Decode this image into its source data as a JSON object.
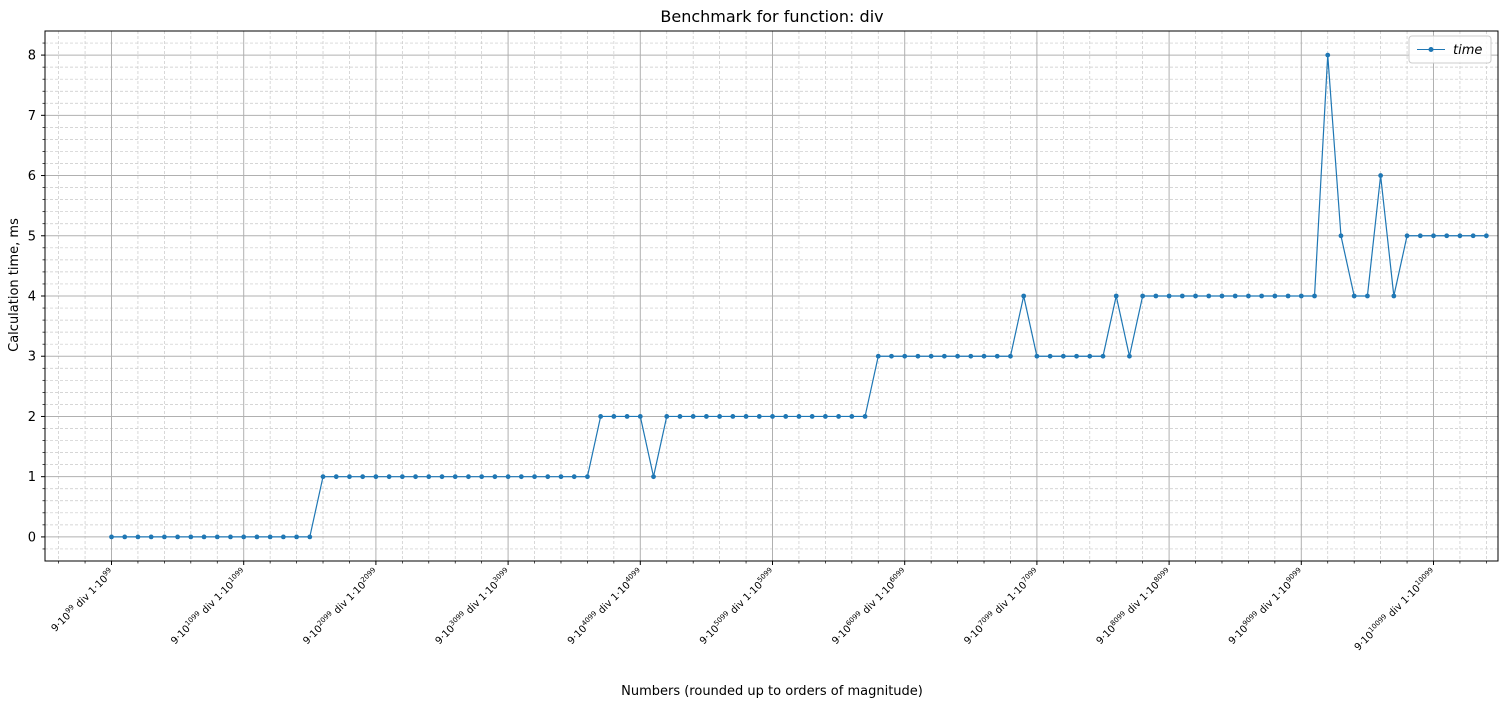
{
  "chart_data": {
    "type": "line",
    "title": "Benchmark for function: div",
    "xlabel": "Numbers (rounded up to orders of magnitude)",
    "ylabel": "Calculation time, ms",
    "ylim": [
      -0.4,
      8.4
    ],
    "yticks": [
      0,
      1,
      2,
      3,
      4,
      5,
      6,
      7,
      8
    ],
    "grid": "major solid, minor dashed",
    "legend_position": "top-right",
    "x_index_range": [
      0,
      100
    ],
    "xtick_labels": [
      {
        "index": 0,
        "pre": "9·10",
        "e1": "99",
        "mid": " div 1·10",
        "e2": "99"
      },
      {
        "index": 10,
        "pre": "9·10",
        "e1": "1099",
        "mid": " div 1·10",
        "e2": "1099"
      },
      {
        "index": 20,
        "pre": "9·10",
        "e1": "2099",
        "mid": " div 1·10",
        "e2": "2099"
      },
      {
        "index": 30,
        "pre": "9·10",
        "e1": "3099",
        "mid": " div 1·10",
        "e2": "3099"
      },
      {
        "index": 40,
        "pre": "9·10",
        "e1": "4099",
        "mid": " div 1·10",
        "e2": "4099"
      },
      {
        "index": 50,
        "pre": "9·10",
        "e1": "5099",
        "mid": " div 1·10",
        "e2": "5099"
      },
      {
        "index": 60,
        "pre": "9·10",
        "e1": "6099",
        "mid": " div 1·10",
        "e2": "6099"
      },
      {
        "index": 70,
        "pre": "9·10",
        "e1": "7099",
        "mid": " div 1·10",
        "e2": "7099"
      },
      {
        "index": 80,
        "pre": "9·10",
        "e1": "8099",
        "mid": " div 1·10",
        "e2": "8099"
      },
      {
        "index": 90,
        "pre": "9·10",
        "e1": "9099",
        "mid": " div 1·10",
        "e2": "9099"
      },
      {
        "index": 100,
        "pre": "9·10",
        "e1": "10099",
        "mid": " div 1·10",
        "e2": "10099"
      }
    ],
    "series": [
      {
        "name": "time",
        "color": "#1f77b4",
        "values": [
          0,
          0,
          0,
          0,
          0,
          0,
          0,
          0,
          0,
          0,
          0,
          0,
          0,
          0,
          0,
          0,
          1,
          1,
          1,
          1,
          1,
          1,
          1,
          1,
          1,
          1,
          1,
          1,
          1,
          1,
          1,
          1,
          1,
          1,
          1,
          1,
          1,
          2,
          2,
          2,
          2,
          1,
          2,
          2,
          2,
          2,
          2,
          2,
          2,
          2,
          2,
          2,
          2,
          2,
          2,
          2,
          2,
          2,
          3,
          3,
          3,
          3,
          3,
          3,
          3,
          3,
          3,
          3,
          3,
          4,
          3,
          3,
          3,
          3,
          3,
          3,
          4,
          3,
          4,
          4,
          4,
          4,
          4,
          4,
          4,
          4,
          4,
          4,
          4,
          4,
          4,
          4,
          8,
          5,
          4,
          4,
          6,
          4,
          5,
          5,
          5,
          5,
          5,
          5,
          5
        ]
      }
    ]
  }
}
